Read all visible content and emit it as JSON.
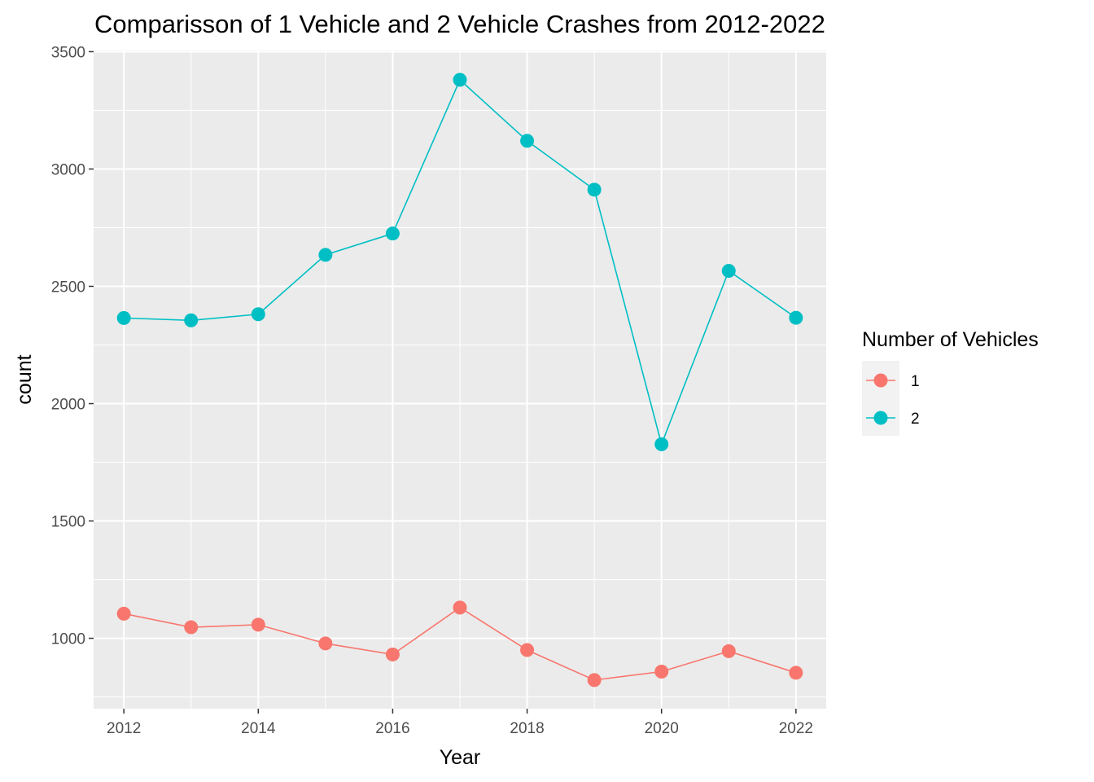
{
  "chart_data": {
    "type": "line",
    "title": "Comparisson of 1 Vehicle and 2 Vehicle Crashes from 2012-2022",
    "xlabel": "Year",
    "ylabel": "count",
    "x": [
      2012,
      2013,
      2014,
      2015,
      2016,
      2017,
      2018,
      2019,
      2020,
      2021,
      2022
    ],
    "x_ticks": [
      2012,
      2014,
      2016,
      2018,
      2020,
      2022
    ],
    "y_ticks": [
      1000,
      1500,
      2000,
      2500,
      3000,
      3500
    ],
    "xlim": [
      2011.55,
      2022.45
    ],
    "ylim": [
      700,
      3505
    ],
    "grid": true,
    "legend": {
      "title": "Number of Vehicles",
      "position": "right"
    },
    "series": [
      {
        "name": "1",
        "color": "#F8766D",
        "values": [
          1105,
          1047,
          1058,
          978,
          931,
          1131,
          950,
          822,
          858,
          945,
          853
        ]
      },
      {
        "name": "2",
        "color": "#00BFC4",
        "values": [
          2365,
          2355,
          2381,
          2634,
          2725,
          3380,
          3120,
          2912,
          1827,
          2566,
          2366
        ]
      }
    ]
  }
}
